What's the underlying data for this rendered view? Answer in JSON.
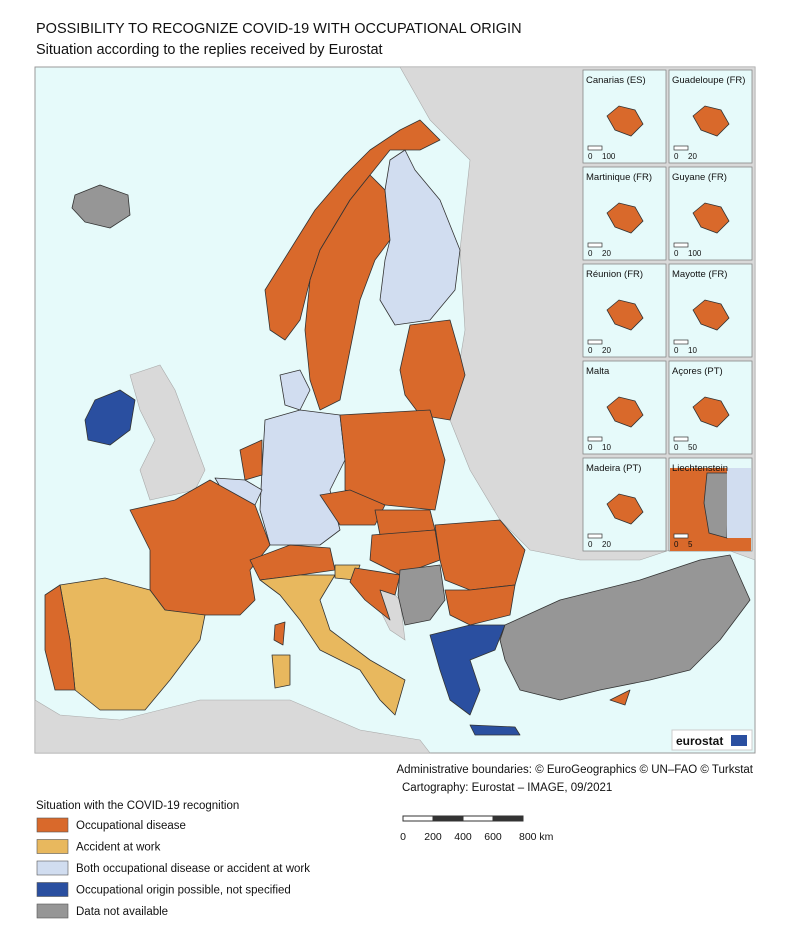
{
  "header": {
    "title": "POSSIBILITY TO RECOGNIZE COVID-19 WITH OCCUPATIONAL ORIGIN",
    "subtitle": "Situation according to the replies received by Eurostat"
  },
  "insets": [
    {
      "label": "Canarias (ES)",
      "scale": [
        "0",
        "100"
      ]
    },
    {
      "label": "Guadeloupe (FR)",
      "scale": [
        "0",
        "20"
      ]
    },
    {
      "label": "Martinique (FR)",
      "scale": [
        "0",
        "20"
      ]
    },
    {
      "label": "Guyane (FR)",
      "scale": [
        "0",
        "100"
      ]
    },
    {
      "label": "Réunion (FR)",
      "scale": [
        "0",
        "20"
      ]
    },
    {
      "label": "Mayotte (FR)",
      "scale": [
        "0",
        "10"
      ]
    },
    {
      "label": "Malta",
      "scale": [
        "0",
        "10"
      ]
    },
    {
      "label": "Açores (PT)",
      "scale": [
        "0",
        "50"
      ]
    },
    {
      "label": "Madeira (PT)",
      "scale": [
        "0",
        "20"
      ]
    },
    {
      "label": "Liechtenstein",
      "scale": [
        "0",
        "5"
      ]
    }
  ],
  "logo": "eurostat",
  "credits": [
    "Administrative boundaries: © EuroGeographics © UN–FAO © Turkstat",
    "Cartography: Eurostat – IMAGE, 09/2021"
  ],
  "scale_bar": [
    "0",
    "200",
    "400",
    "600",
    "800 km"
  ],
  "legend": {
    "title": "Situation with the COVID-19 recognition",
    "items": [
      {
        "label": "Occupational disease",
        "color": "#d9692b"
      },
      {
        "label": "Accident at work",
        "color": "#e8b85e"
      },
      {
        "label": "Both occupational disease or accident at work",
        "color": "#d1ddf0"
      },
      {
        "label": "Occupational origin possible, not specified",
        "color": "#2a4fa0"
      },
      {
        "label": "Data not available",
        "color": "#969696"
      }
    ]
  }
}
